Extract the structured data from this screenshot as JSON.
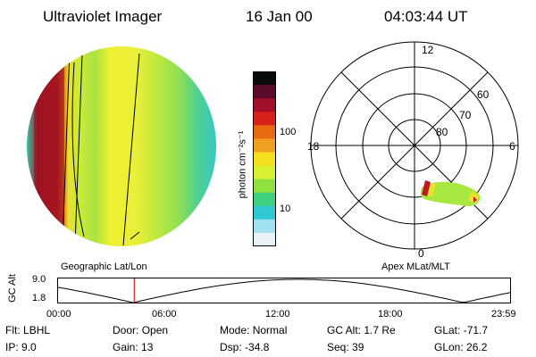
{
  "header": {
    "title": "Ultraviolet Imager",
    "date": "16 Jan 00",
    "time": "04:03:44 UT"
  },
  "colorbar": {
    "unit_label": "photon cm⁻²s⁻¹",
    "ticks": [
      "100",
      "10"
    ],
    "colors": [
      "#0a0a0a",
      "#5a0a2a",
      "#a0102a",
      "#d8201a",
      "#e86a10",
      "#f0a020",
      "#f5e020",
      "#d8f030",
      "#90e040",
      "#40d080",
      "#30c8d0",
      "#a0e0f0",
      "#e8f0f8"
    ]
  },
  "images": {
    "left_caption": "Geographic Lat/Lon",
    "right_caption": "Apex MLat/MLT"
  },
  "polar": {
    "hour_labels": [
      "12",
      "18",
      "6",
      "0"
    ],
    "lat_labels": [
      "60",
      "70",
      "80"
    ]
  },
  "altitude_plot": {
    "ylabel": "GC Alt",
    "ytick_top": "9.0",
    "ytick_bottom": "1.8",
    "xticks": [
      "00:00",
      "06:00",
      "12:00",
      "18:00",
      "23:59"
    ],
    "current_time_hours": 4.06,
    "marker_color": "#e02020"
  },
  "info": {
    "row1": [
      {
        "key": "Flt:",
        "value": "LBHL"
      },
      {
        "key": "Door:",
        "value": "Open"
      },
      {
        "key": "Mode:",
        "value": "Normal"
      },
      {
        "key": "GC Alt:",
        "value": "1.7 Re"
      },
      {
        "key": "GLat:",
        "value": "-71.7"
      }
    ],
    "row2": [
      {
        "key": "IP:",
        "value": "9.0"
      },
      {
        "key": "Gain:",
        "value": "13"
      },
      {
        "key": "Dsp:",
        "value": "-34.8"
      },
      {
        "key": "Seq:",
        "value": "39"
      },
      {
        "key": "GLon:",
        "value": "26.2"
      }
    ]
  }
}
